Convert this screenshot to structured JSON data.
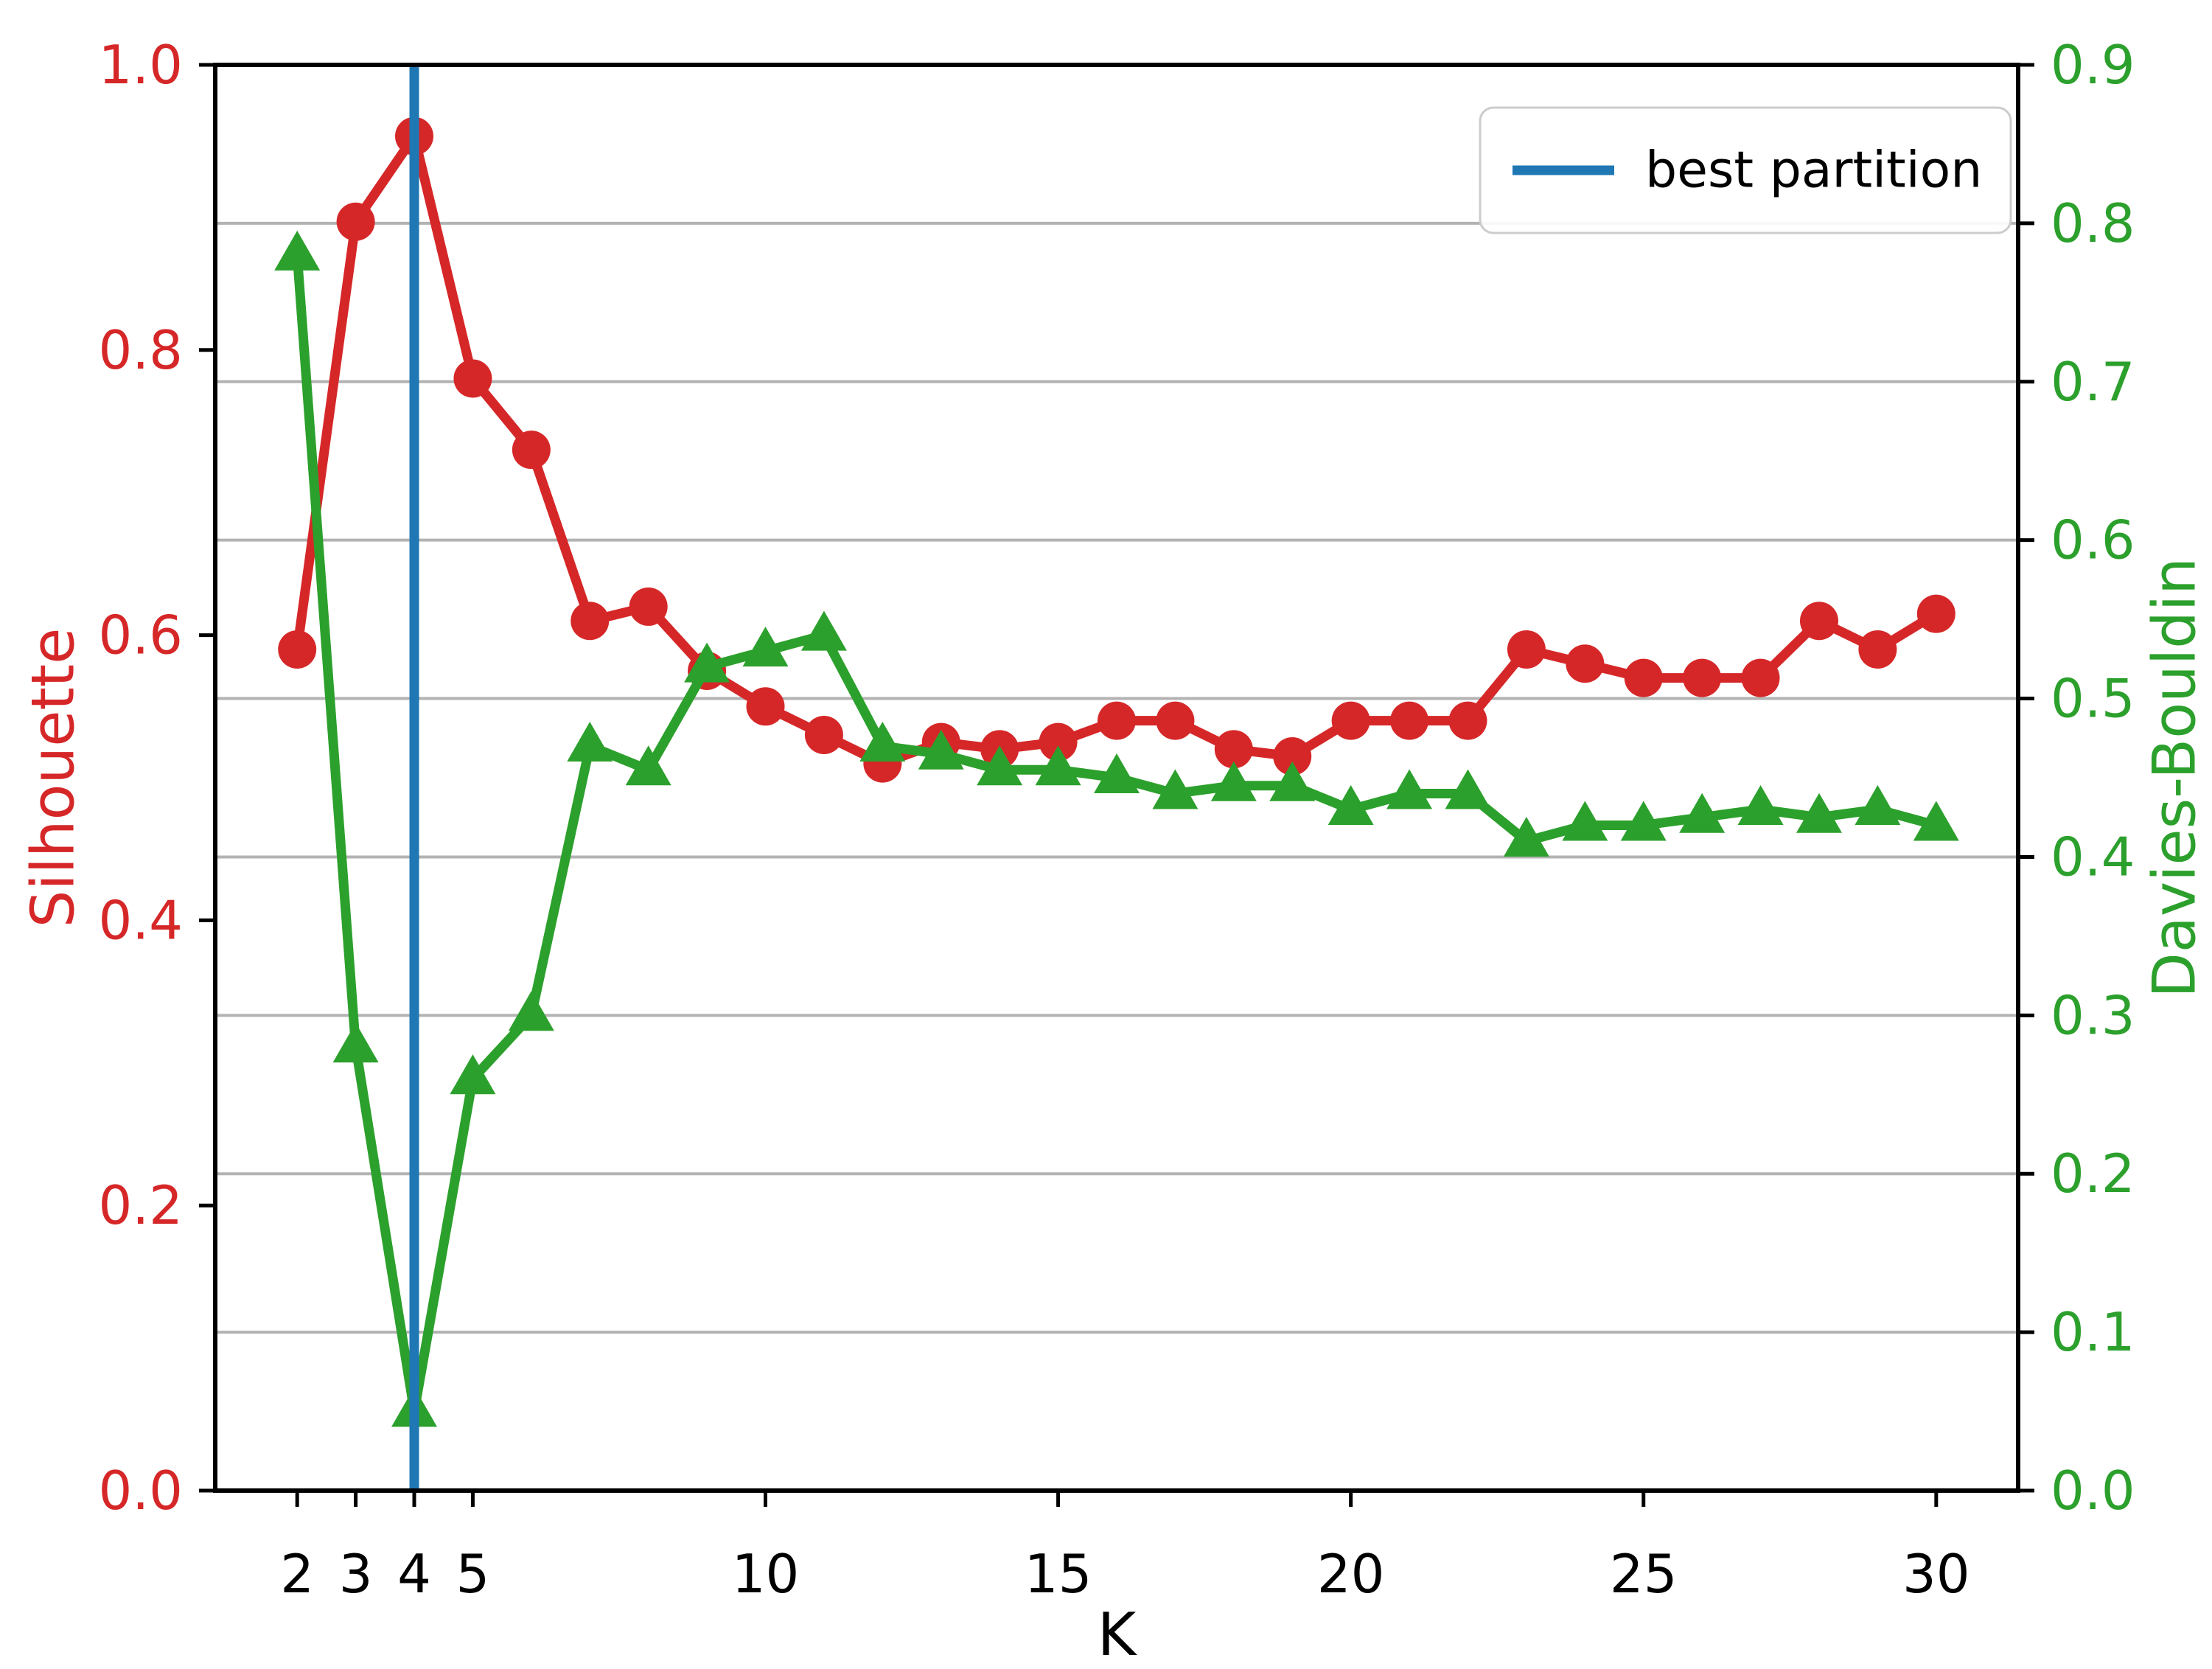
{
  "figure": {
    "background": "#ffffff",
    "axes": {
      "x": {
        "label": "K",
        "tick_labels": [
          "2",
          "3",
          "4",
          "5",
          "10",
          "15",
          "20",
          "25",
          "30"
        ],
        "tick_values": [
          2,
          3,
          4,
          5,
          10,
          15,
          20,
          25,
          30
        ],
        "lim": [
          0.6,
          31.4
        ],
        "tick_color": "#000000"
      },
      "y_left": {
        "label": "Silhouette",
        "tick_labels": [
          "0.0",
          "0.2",
          "0.4",
          "0.6",
          "0.8",
          "1.0"
        ],
        "tick_values": [
          0.0,
          0.2,
          0.4,
          0.6,
          0.8,
          1.0
        ],
        "lim": [
          0.0,
          1.0
        ],
        "color": "#d62728"
      },
      "y_right": {
        "label": "Davies-Bouldin",
        "tick_labels": [
          "0.0",
          "0.1",
          "0.2",
          "0.3",
          "0.4",
          "0.5",
          "0.6",
          "0.7",
          "0.8",
          "0.9"
        ],
        "tick_values": [
          0.0,
          0.1,
          0.2,
          0.3,
          0.4,
          0.5,
          0.6,
          0.7,
          0.8,
          0.9
        ],
        "lim": [
          0.0,
          0.9
        ],
        "color": "#2ca02c"
      }
    },
    "legend": {
      "label": "best partition",
      "line_color": "#1f77b4",
      "border_color": "#cccccc",
      "text_color": "#000000",
      "position": "upper right"
    },
    "grid_color": "#b3b3b3",
    "spine_color": "#000000"
  },
  "chart_data": {
    "type": "line",
    "title": "",
    "xlabel": "K",
    "ylabel_left": "Silhouette",
    "ylabel_right": "Davies-Bouldin",
    "x": [
      2,
      3,
      4,
      5,
      6,
      7,
      8,
      9,
      10,
      11,
      12,
      13,
      14,
      15,
      16,
      17,
      18,
      19,
      20,
      21,
      22,
      23,
      24,
      25,
      26,
      27,
      28,
      29,
      30
    ],
    "series": [
      {
        "name": "Silhouette",
        "axis": "left",
        "color": "#d62728",
        "marker": "circle",
        "values": [
          0.59,
          0.89,
          0.95,
          0.78,
          0.73,
          0.61,
          0.62,
          0.575,
          0.55,
          0.53,
          0.51,
          0.525,
          0.52,
          0.525,
          0.54,
          0.54,
          0.52,
          0.515,
          0.54,
          0.54,
          0.54,
          0.59,
          0.58,
          0.57,
          0.57,
          0.57,
          0.61,
          0.59,
          0.615
        ]
      },
      {
        "name": "Davies-Bouldin",
        "axis": "right",
        "color": "#2ca02c",
        "marker": "triangle_up",
        "values": [
          0.78,
          0.28,
          0.05,
          0.26,
          0.3,
          0.47,
          0.455,
          0.52,
          0.53,
          0.54,
          0.47,
          0.465,
          0.455,
          0.455,
          0.45,
          0.44,
          0.445,
          0.445,
          0.43,
          0.44,
          0.44,
          0.41,
          0.42,
          0.42,
          0.425,
          0.43,
          0.425,
          0.43,
          0.42
        ]
      }
    ],
    "best_partition_k": 4,
    "vline": {
      "x": 4,
      "color": "#1f77b4",
      "legend_label": "best partition"
    },
    "xlim": [
      0.6,
      31.4
    ],
    "ylim_left": [
      0.0,
      1.0
    ],
    "ylim_right": [
      0.0,
      0.9
    ],
    "grid": "horizontal gridlines at right-axis ticks 0.1-0.8",
    "legend_entries": [
      "best partition"
    ]
  }
}
